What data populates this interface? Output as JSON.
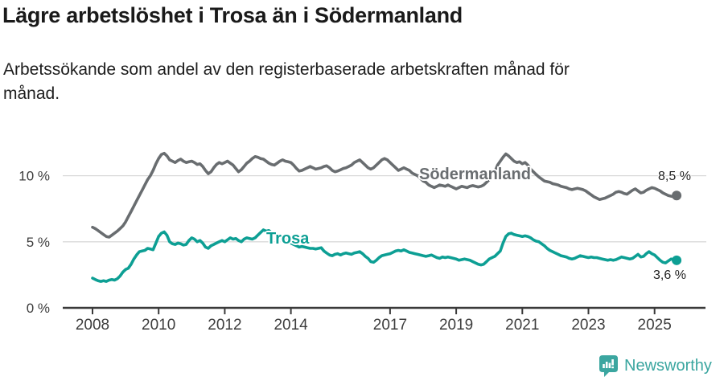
{
  "header": {
    "title": "Lägre arbetslöshet i Trosa än i Södermanland",
    "subtitle_line1": "Arbetssökande som andel av den registerbaserade arbetskraften månad för",
    "subtitle_line2": "månad."
  },
  "footer": {
    "brand": "Newsworthy"
  },
  "colors": {
    "trosa": "#0D9F94",
    "sodermanland": "#696D70",
    "grid": "#D9D9D9",
    "axis": "#3A3A3A",
    "text": "#1D1D1D",
    "brand_teal": "#3BA6A0"
  },
  "chart_data": {
    "type": "line",
    "title": "Lägre arbetslöshet i Trosa än i Södermanland",
    "subtitle": "Arbetssökande som andel av den registerbaserade arbetskraften månad för månad.",
    "unit": "%",
    "grid": "horizontal",
    "legend_position": "inline-labels",
    "x_axis": {
      "ticks": [
        "2008",
        "2010",
        "2012",
        "2014",
        "2017",
        "2019",
        "2021",
        "2023",
        "2025"
      ],
      "range": [
        2007.4,
        2026.3
      ]
    },
    "y_axis": {
      "ticks": [
        "0 %",
        "5 %",
        "10 %"
      ],
      "tick_values": [
        0,
        5,
        10
      ],
      "range": [
        0,
        12.6
      ]
    },
    "series": [
      {
        "name": "Södermanland",
        "color": "#696D70",
        "end_label": "8,5 %",
        "end_value": 8.5,
        "start_year": 2008,
        "step_months": 1,
        "values": [
          6.1,
          6.0,
          5.85,
          5.7,
          5.55,
          5.4,
          5.35,
          5.5,
          5.65,
          5.8,
          6.0,
          6.2,
          6.5,
          6.9,
          7.3,
          7.7,
          8.1,
          8.5,
          8.9,
          9.3,
          9.7,
          10.0,
          10.4,
          10.9,
          11.3,
          11.6,
          11.7,
          11.5,
          11.2,
          11.1,
          11.0,
          11.15,
          11.25,
          11.1,
          11.0,
          11.05,
          11.1,
          11.0,
          10.85,
          10.9,
          10.7,
          10.4,
          10.15,
          10.3,
          10.6,
          10.85,
          11.0,
          10.9,
          11.0,
          11.1,
          10.95,
          10.8,
          10.55,
          10.3,
          10.45,
          10.7,
          10.95,
          11.1,
          11.3,
          11.45,
          11.4,
          11.3,
          11.25,
          11.1,
          10.95,
          10.85,
          10.8,
          10.95,
          11.1,
          11.2,
          11.1,
          11.05,
          11.0,
          10.8,
          10.55,
          10.35,
          10.4,
          10.5,
          10.6,
          10.7,
          10.6,
          10.5,
          10.55,
          10.6,
          10.7,
          10.75,
          10.6,
          10.4,
          10.3,
          10.35,
          10.45,
          10.55,
          10.6,
          10.7,
          10.8,
          11.0,
          11.1,
          11.2,
          11.0,
          10.8,
          10.6,
          10.5,
          10.6,
          10.8,
          11.0,
          11.2,
          11.3,
          11.2,
          11.0,
          10.8,
          10.6,
          10.4,
          10.5,
          10.6,
          10.5,
          10.4,
          10.2,
          10.1,
          10.0,
          9.8,
          9.6,
          9.5,
          9.3,
          9.2,
          9.1,
          9.2,
          9.3,
          9.25,
          9.2,
          9.3,
          9.2,
          9.1,
          9.0,
          9.1,
          9.2,
          9.15,
          9.1,
          9.2,
          9.25,
          9.2,
          9.15,
          9.2,
          9.3,
          9.5,
          9.7,
          9.9,
          10.3,
          10.8,
          11.1,
          11.4,
          11.65,
          11.5,
          11.3,
          11.1,
          11.0,
          11.05,
          10.9,
          11.0,
          10.8,
          10.5,
          10.3,
          10.1,
          9.9,
          9.75,
          9.6,
          9.55,
          9.5,
          9.4,
          9.35,
          9.3,
          9.2,
          9.15,
          9.1,
          9.0,
          8.95,
          9.0,
          9.05,
          9.0,
          8.95,
          8.85,
          8.7,
          8.55,
          8.4,
          8.3,
          8.2,
          8.25,
          8.3,
          8.4,
          8.5,
          8.6,
          8.75,
          8.8,
          8.75,
          8.65,
          8.6,
          8.75,
          8.9,
          9.0,
          8.85,
          8.7,
          8.75,
          8.9,
          9.0,
          9.1,
          9.05,
          8.95,
          8.85,
          8.7,
          8.6,
          8.5,
          8.45,
          8.4,
          8.5
        ]
      },
      {
        "name": "Trosa",
        "color": "#0D9F94",
        "end_label": "3,6 %",
        "end_value": 3.6,
        "start_year": 2008,
        "step_months": 1,
        "values": [
          2.25,
          2.15,
          2.05,
          2.0,
          2.05,
          2.0,
          2.1,
          2.15,
          2.1,
          2.2,
          2.4,
          2.7,
          2.9,
          3.0,
          3.3,
          3.7,
          4.0,
          4.25,
          4.3,
          4.35,
          4.5,
          4.45,
          4.4,
          4.9,
          5.4,
          5.65,
          5.75,
          5.5,
          5.0,
          4.85,
          4.8,
          4.9,
          4.85,
          4.75,
          4.8,
          5.1,
          5.3,
          5.2,
          5.0,
          5.1,
          4.9,
          4.6,
          4.5,
          4.7,
          4.8,
          4.9,
          5.0,
          5.1,
          5.0,
          5.15,
          5.3,
          5.2,
          5.25,
          5.1,
          5.0,
          5.2,
          5.3,
          5.25,
          5.2,
          5.3,
          5.5,
          5.7,
          5.9,
          5.8,
          5.85,
          5.7,
          5.6,
          5.5,
          5.4,
          5.3,
          5.2,
          5.0,
          4.9,
          4.8,
          4.7,
          4.6,
          4.65,
          4.6,
          4.55,
          4.5,
          4.5,
          4.45,
          4.5,
          4.55,
          4.3,
          4.15,
          4.0,
          3.95,
          4.05,
          4.1,
          4.0,
          4.1,
          4.15,
          4.1,
          4.05,
          4.15,
          4.2,
          4.25,
          4.1,
          3.9,
          3.75,
          3.5,
          3.45,
          3.6,
          3.8,
          3.95,
          4.0,
          4.05,
          4.1,
          4.2,
          4.3,
          4.35,
          4.3,
          4.4,
          4.3,
          4.2,
          4.15,
          4.1,
          4.05,
          4.0,
          3.95,
          3.9,
          3.95,
          4.0,
          3.9,
          3.8,
          3.75,
          3.85,
          3.8,
          3.85,
          3.8,
          3.75,
          3.7,
          3.6,
          3.65,
          3.7,
          3.65,
          3.6,
          3.5,
          3.4,
          3.3,
          3.25,
          3.3,
          3.5,
          3.7,
          3.8,
          3.9,
          4.1,
          4.3,
          4.9,
          5.4,
          5.6,
          5.65,
          5.55,
          5.5,
          5.45,
          5.4,
          5.45,
          5.4,
          5.3,
          5.15,
          5.05,
          5.0,
          4.85,
          4.7,
          4.5,
          4.35,
          4.25,
          4.15,
          4.05,
          3.95,
          3.9,
          3.85,
          3.75,
          3.7,
          3.75,
          3.85,
          3.95,
          3.9,
          3.85,
          3.8,
          3.85,
          3.8,
          3.8,
          3.75,
          3.7,
          3.65,
          3.6,
          3.65,
          3.6,
          3.65,
          3.75,
          3.85,
          3.8,
          3.75,
          3.7,
          3.75,
          3.9,
          4.05,
          3.85,
          3.9,
          4.1,
          4.25,
          4.1,
          4.0,
          3.8,
          3.6,
          3.45,
          3.4,
          3.55,
          3.7,
          3.65,
          3.6
        ]
      }
    ]
  }
}
